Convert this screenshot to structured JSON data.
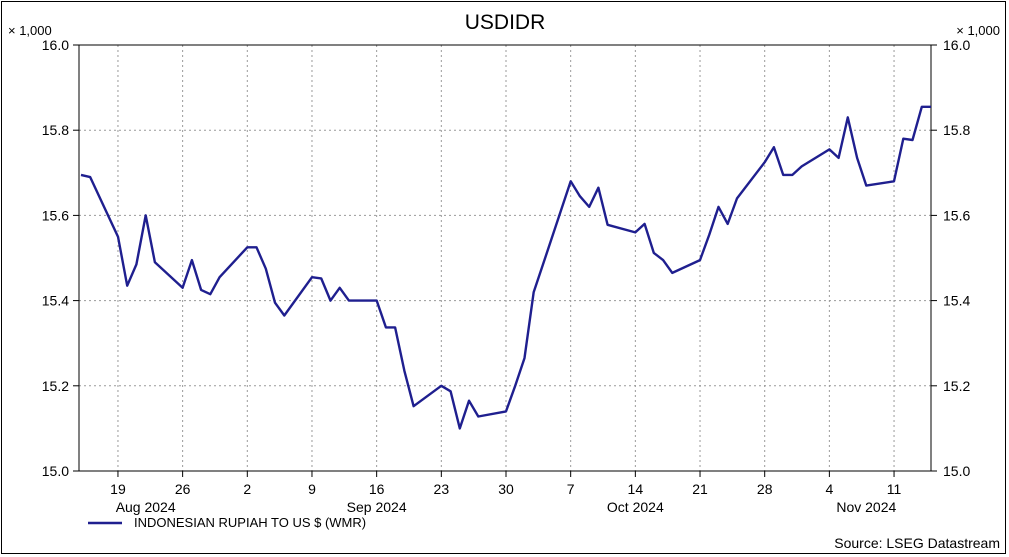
{
  "chart_data": {
    "type": "line",
    "title": "USDIDR",
    "y_unit_label_left": "× 1,000",
    "y_unit_label_right": "× 1,000",
    "ylim": [
      15.0,
      16.0
    ],
    "y_ticks": [
      "15.0",
      "15.2",
      "15.4",
      "15.6",
      "15.8",
      "16.0"
    ],
    "grid": true,
    "x_day_ticks": [
      "19",
      "26",
      "2",
      "9",
      "16",
      "23",
      "30",
      "7",
      "14",
      "21",
      "28",
      "4",
      "11"
    ],
    "x_month_labels": [
      "Aug 2024",
      "Sep 2024",
      "Oct 2024",
      "Nov 2024"
    ],
    "legend_position": "bottom-left",
    "source": "Source: LSEG Datastream",
    "series": [
      {
        "name": "INDONESIAN RUPIAH TO US $ (WMR)",
        "color": "#1f1f8f",
        "x": [
          "2024-08-15",
          "2024-08-16",
          "2024-08-19",
          "2024-08-20",
          "2024-08-21",
          "2024-08-22",
          "2024-08-23",
          "2024-08-26",
          "2024-08-27",
          "2024-08-28",
          "2024-08-29",
          "2024-08-30",
          "2024-09-02",
          "2024-09-03",
          "2024-09-04",
          "2024-09-05",
          "2024-09-06",
          "2024-09-09",
          "2024-09-10",
          "2024-09-11",
          "2024-09-12",
          "2024-09-13",
          "2024-09-16",
          "2024-09-17",
          "2024-09-18",
          "2024-09-19",
          "2024-09-20",
          "2024-09-23",
          "2024-09-24",
          "2024-09-25",
          "2024-09-26",
          "2024-09-27",
          "2024-09-30",
          "2024-10-01",
          "2024-10-02",
          "2024-10-03",
          "2024-10-04",
          "2024-10-07",
          "2024-10-08",
          "2024-10-09",
          "2024-10-10",
          "2024-10-11",
          "2024-10-14",
          "2024-10-15",
          "2024-10-16",
          "2024-10-17",
          "2024-10-18",
          "2024-10-21",
          "2024-10-22",
          "2024-10-23",
          "2024-10-24",
          "2024-10-25",
          "2024-10-28",
          "2024-10-29",
          "2024-10-30",
          "2024-10-31",
          "2024-11-01",
          "2024-11-04",
          "2024-11-05",
          "2024-11-06",
          "2024-11-07",
          "2024-11-08",
          "2024-11-11",
          "2024-11-12",
          "2024-11-13",
          "2024-11-14",
          "2024-11-15"
        ],
        "values": [
          15.695,
          15.69,
          15.55,
          15.435,
          15.485,
          15.6,
          15.49,
          15.43,
          15.495,
          15.425,
          15.415,
          15.455,
          15.525,
          15.525,
          15.475,
          15.395,
          15.365,
          15.455,
          15.452,
          15.4,
          15.43,
          15.4,
          15.4,
          15.337,
          15.337,
          15.235,
          15.152,
          15.2,
          15.187,
          15.1,
          15.165,
          15.128,
          15.14,
          15.2,
          15.265,
          15.42,
          15.485,
          15.68,
          15.645,
          15.62,
          15.665,
          15.578,
          15.56,
          15.58,
          15.512,
          15.495,
          15.465,
          15.495,
          15.555,
          15.62,
          15.58,
          15.64,
          15.725,
          15.76,
          15.695,
          15.695,
          15.715,
          15.755,
          15.735,
          15.83,
          15.735,
          15.67,
          15.68,
          15.78,
          15.777,
          15.855,
          15.855
        ]
      }
    ]
  }
}
